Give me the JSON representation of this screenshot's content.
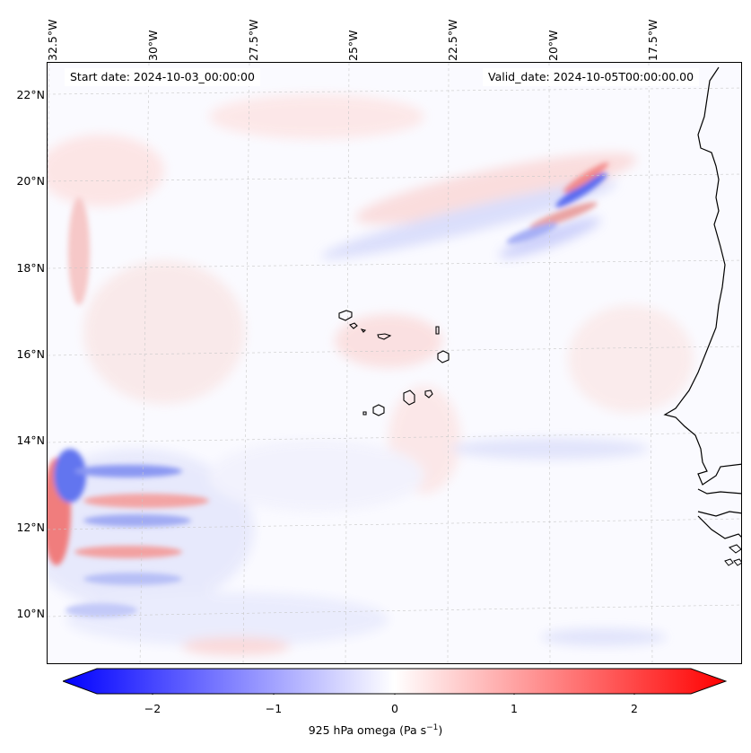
{
  "map": {
    "start_date": "Start date: 2024-10-03_00:00:00",
    "valid_date": "Valid_date: 2024-10-05T00:00:00.00",
    "lon_labels": [
      "32.5°W",
      "30°W",
      "27.5°W",
      "25°W",
      "22.5°W",
      "20°W",
      "17.5°W"
    ],
    "lat_labels": [
      "22°N",
      "20°N",
      "18°N",
      "16°N",
      "14°N",
      "12°N",
      "10°N"
    ]
  },
  "colorbar": {
    "ticks": [
      "−2",
      "−1",
      "0",
      "1",
      "2"
    ],
    "label": "925 hPa omega (Pa s",
    "label_exp": "−1",
    "label_close": ")",
    "cmap": "bwr",
    "min_color": "#0000ff",
    "mid_color": "#ffffff",
    "max_color": "#ff0000"
  },
  "coastline_color": "#000000"
}
